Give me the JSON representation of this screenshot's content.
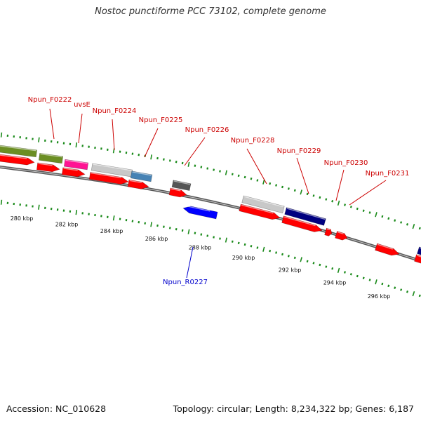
{
  "title": "Nostoc punctiforme PCC 73102, complete genome",
  "footer": {
    "accession": "Accession: NC_010628",
    "summary": "Topology: circular; Length: 8,234,322 bp; Genes: 6,187"
  },
  "colors": {
    "cds": "#ff0000",
    "tick": "#1a8a1a",
    "backbone": "#7a7a7a",
    "label_forward": "#cc0000",
    "label_reverse": "#0000cc",
    "olive": "#6b8e23",
    "magenta": "#ff1493",
    "lightgray": "#c8c8c8",
    "steelblue": "#4682b4",
    "darkgray": "#555555",
    "navy": "#000080",
    "blue": "#0000ff"
  },
  "axis": {
    "tick_labels": [
      "280 kbp",
      "282 kbp",
      "284 kbp",
      "286 kbp",
      "288 kbp",
      "290 kbp",
      "292 kbp",
      "294 kbp",
      "296 kbp"
    ]
  },
  "genes": [
    {
      "label": "Npun_F0222",
      "strand": "forward"
    },
    {
      "label": "uvsE",
      "strand": "forward"
    },
    {
      "label": "Npun_F0224",
      "strand": "forward"
    },
    {
      "label": "Npun_F0225",
      "strand": "forward"
    },
    {
      "label": "Npun_F0226",
      "strand": "forward"
    },
    {
      "label": "Npun_F0228",
      "strand": "forward"
    },
    {
      "label": "Npun_F0229",
      "strand": "forward"
    },
    {
      "label": "Npun_F0230",
      "strand": "forward"
    },
    {
      "label": "Npun_F0231",
      "strand": "forward"
    },
    {
      "label": "Npun_R0227",
      "strand": "reverse"
    }
  ]
}
